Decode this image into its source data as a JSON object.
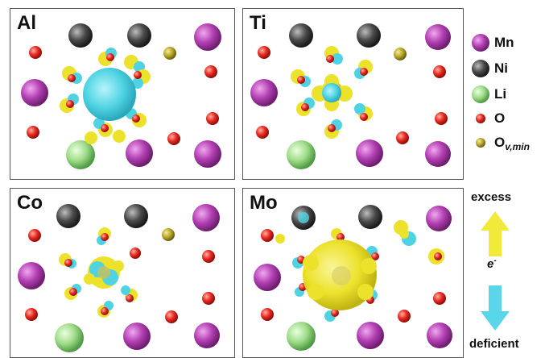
{
  "panels": [
    {
      "label": "Al",
      "center": "cyan"
    },
    {
      "label": "Ti",
      "center": "cyan-small"
    },
    {
      "label": "Co",
      "center": "mixed"
    },
    {
      "label": "Mo",
      "center": "yellow"
    }
  ],
  "legend": {
    "items": [
      {
        "label": "Mn",
        "color": "#b23fb2"
      },
      {
        "label": "Ni",
        "color": "#4a4a4a"
      },
      {
        "label": "Li",
        "color": "#9fdc8a"
      },
      {
        "label": "O",
        "color": "#e8271f"
      },
      {
        "label": "O",
        "sub": "v,min",
        "color": "#b8a82a"
      }
    ]
  },
  "charge": {
    "excess_label": "excess",
    "deficient_label": "deficient",
    "electron_symbol": "e",
    "electron_sup": "-",
    "excess_color": "#f2ea3a",
    "deficient_color": "#5ad6ea"
  }
}
